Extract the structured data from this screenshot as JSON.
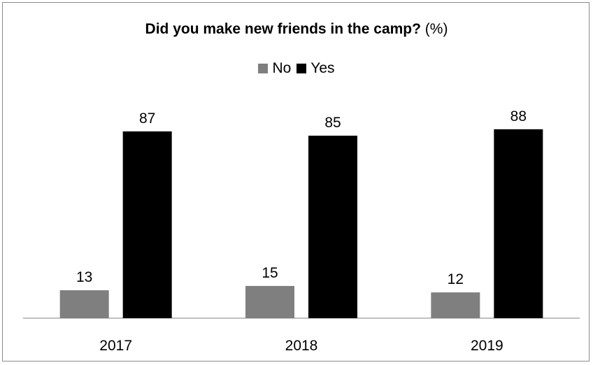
{
  "chart_data": {
    "type": "bar",
    "title": "Did you make new friends in the camp?",
    "title_suffix": "(%)",
    "categories": [
      "2017",
      "2018",
      "2019"
    ],
    "series": [
      {
        "name": "No",
        "values": [
          13,
          15,
          12
        ],
        "color": "#7f7f7f"
      },
      {
        "name": "Yes",
        "values": [
          87,
          85,
          88
        ],
        "color": "#000000"
      }
    ],
    "legend_position": "top",
    "grid": false,
    "ylim": [
      0,
      100
    ],
    "xlabel": "",
    "ylabel": ""
  }
}
